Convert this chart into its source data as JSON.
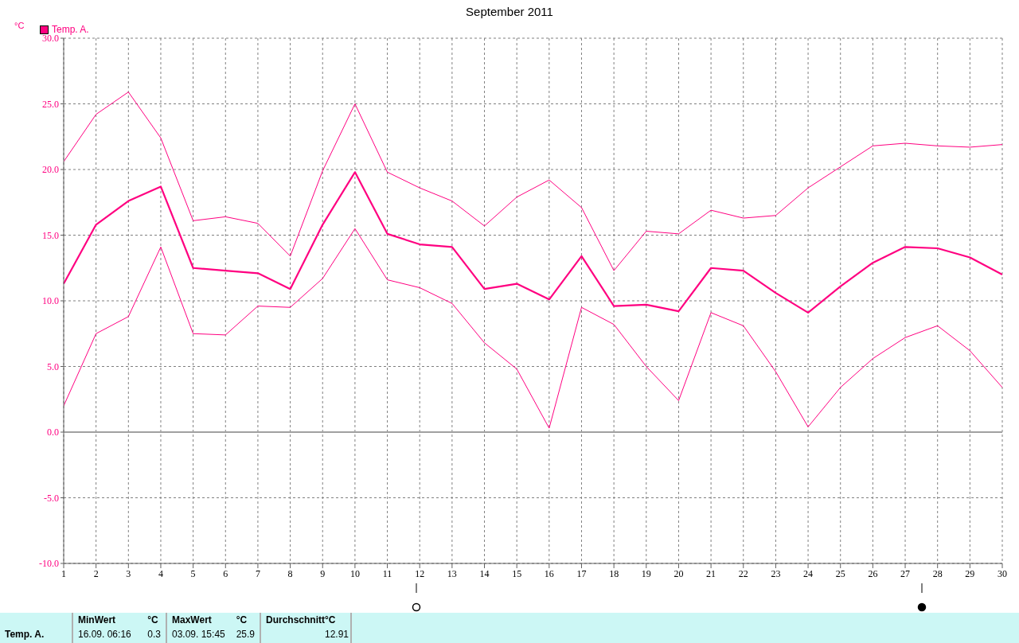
{
  "chart_data": {
    "type": "line",
    "title": "September 2011",
    "ylabel": "°C",
    "legend": "top left",
    "grid": true,
    "marker": "none",
    "line_style": "solid",
    "x": [
      1,
      2,
      3,
      4,
      5,
      6,
      7,
      8,
      9,
      10,
      11,
      12,
      13,
      14,
      15,
      16,
      17,
      18,
      19,
      20,
      21,
      22,
      23,
      24,
      25,
      26,
      27,
      28,
      29,
      30
    ],
    "xlim": [
      1,
      30
    ],
    "xticks": [
      1,
      2,
      3,
      4,
      5,
      6,
      7,
      8,
      9,
      10,
      11,
      12,
      13,
      14,
      15,
      16,
      17,
      18,
      19,
      20,
      21,
      22,
      23,
      24,
      25,
      26,
      27,
      28,
      29,
      30
    ],
    "ylim": [
      -10,
      30
    ],
    "yticks": [
      {
        "value": -10,
        "label": "-10.0"
      },
      {
        "value": -5,
        "label": "-5.0"
      },
      {
        "value": 0,
        "label": "0.0"
      },
      {
        "value": 5,
        "label": "5.0"
      },
      {
        "value": 10,
        "label": "10.0"
      },
      {
        "value": 15,
        "label": "15.0"
      },
      {
        "value": 20,
        "label": "20.0"
      },
      {
        "value": 25,
        "label": "25.0"
      },
      {
        "value": 30,
        "label": "30.0"
      }
    ],
    "ref_lines": [
      {
        "axis": "y",
        "value": 0,
        "color": "#a0a0a0"
      }
    ],
    "series": [
      {
        "name": "Temp. A.",
        "color": "#ff0080",
        "values": [
          11.3,
          15.8,
          17.6,
          18.7,
          12.5,
          12.3,
          12.1,
          10.9,
          15.8,
          19.8,
          15.1,
          14.3,
          14.1,
          10.9,
          11.3,
          10.1,
          13.4,
          9.6,
          9.7,
          9.2,
          12.5,
          12.3,
          10.6,
          9.1,
          11.1,
          12.9,
          14.1,
          14.0,
          13.3,
          12.0
        ]
      },
      {
        "color": "#ff0080",
        "values": [
          20.6,
          24.2,
          25.9,
          22.4,
          16.1,
          16.4,
          15.9,
          13.4,
          19.9,
          25.0,
          19.8,
          18.6,
          17.6,
          15.7,
          17.9,
          19.2,
          17.1,
          12.3,
          15.3,
          15.1,
          16.9,
          16.3,
          16.5,
          18.6,
          20.2,
          21.8,
          22.0,
          21.8,
          21.7,
          21.9
        ]
      },
      {
        "color": "#ff0080",
        "values": [
          2.0,
          7.5,
          8.8,
          14.1,
          7.5,
          7.4,
          9.6,
          9.5,
          11.7,
          15.5,
          11.6,
          11.0,
          9.8,
          6.8,
          4.8,
          0.3,
          9.5,
          8.2,
          5.0,
          2.4,
          9.1,
          8.1,
          4.6,
          0.4,
          3.4,
          5.6,
          7.2,
          8.1,
          6.2,
          3.4
        ]
      }
    ],
    "annotations": [
      "Temp. A.",
      "MinWert",
      "°C",
      "16.09.  06:16",
      "0.3",
      "MaxWert",
      "°C",
      "03.09.  15:45",
      "25.9",
      "Durchschnitt",
      "°C",
      "12.91"
    ]
  }
}
